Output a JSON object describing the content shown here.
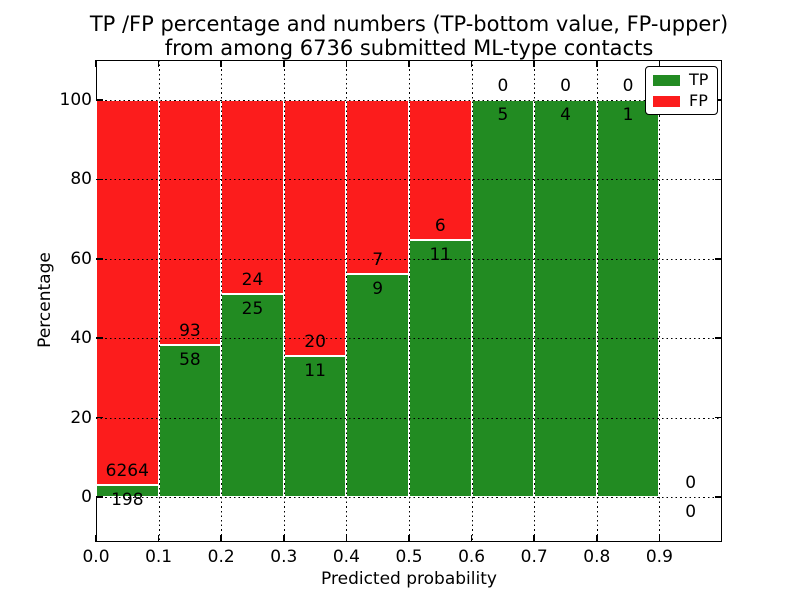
{
  "figure": {
    "title_line1": "TP /FP percentage and numbers (TP-bottom value, FP-upper)",
    "title_line2": "from among 6736 submitted ML-type contacts"
  },
  "chart_data": {
    "type": "bar",
    "stacked": true,
    "normalized": "each bin stacked to 100%",
    "title": "TP /FP percentage and numbers (TP-bottom value, FP-upper) from among 6736 submitted ML-type contacts",
    "xlabel": "Predicted probability",
    "ylabel": "Percentage",
    "xlim": [
      0.0,
      1.0
    ],
    "ylim": [
      -11,
      110
    ],
    "grid": "dotted",
    "x_tick_labels": [
      "0.0",
      "0.1",
      "0.2",
      "0.3",
      "0.4",
      "0.5",
      "0.6",
      "0.7",
      "0.8",
      "0.9"
    ],
    "y_tick_labels": [
      "0",
      "20",
      "40",
      "60",
      "80",
      "100"
    ],
    "y_tick_values": [
      0,
      20,
      40,
      60,
      80,
      100
    ],
    "bin_width": 0.1,
    "bins": [
      {
        "range": "0.0-0.1",
        "tp": 198,
        "fp": 6264
      },
      {
        "range": "0.1-0.2",
        "tp": 58,
        "fp": 93
      },
      {
        "range": "0.2-0.3",
        "tp": 25,
        "fp": 24
      },
      {
        "range": "0.3-0.4",
        "tp": 11,
        "fp": 20
      },
      {
        "range": "0.4-0.5",
        "tp": 9,
        "fp": 7
      },
      {
        "range": "0.5-0.6",
        "tp": 11,
        "fp": 6
      },
      {
        "range": "0.6-0.7",
        "tp": 5,
        "fp": 0
      },
      {
        "range": "0.7-0.8",
        "tp": 4,
        "fp": 0
      },
      {
        "range": "0.8-0.9",
        "tp": 1,
        "fp": 0
      },
      {
        "range": "0.9-1.0",
        "tp": 0,
        "fp": 0
      }
    ],
    "colors": {
      "tp": "#228b22",
      "fp": "#fc1c1c"
    },
    "legend": {
      "position": "upper-right",
      "entries": [
        {
          "label": "TP",
          "color": "#228b22"
        },
        {
          "label": "FP",
          "color": "#fc1c1c"
        }
      ]
    }
  }
}
